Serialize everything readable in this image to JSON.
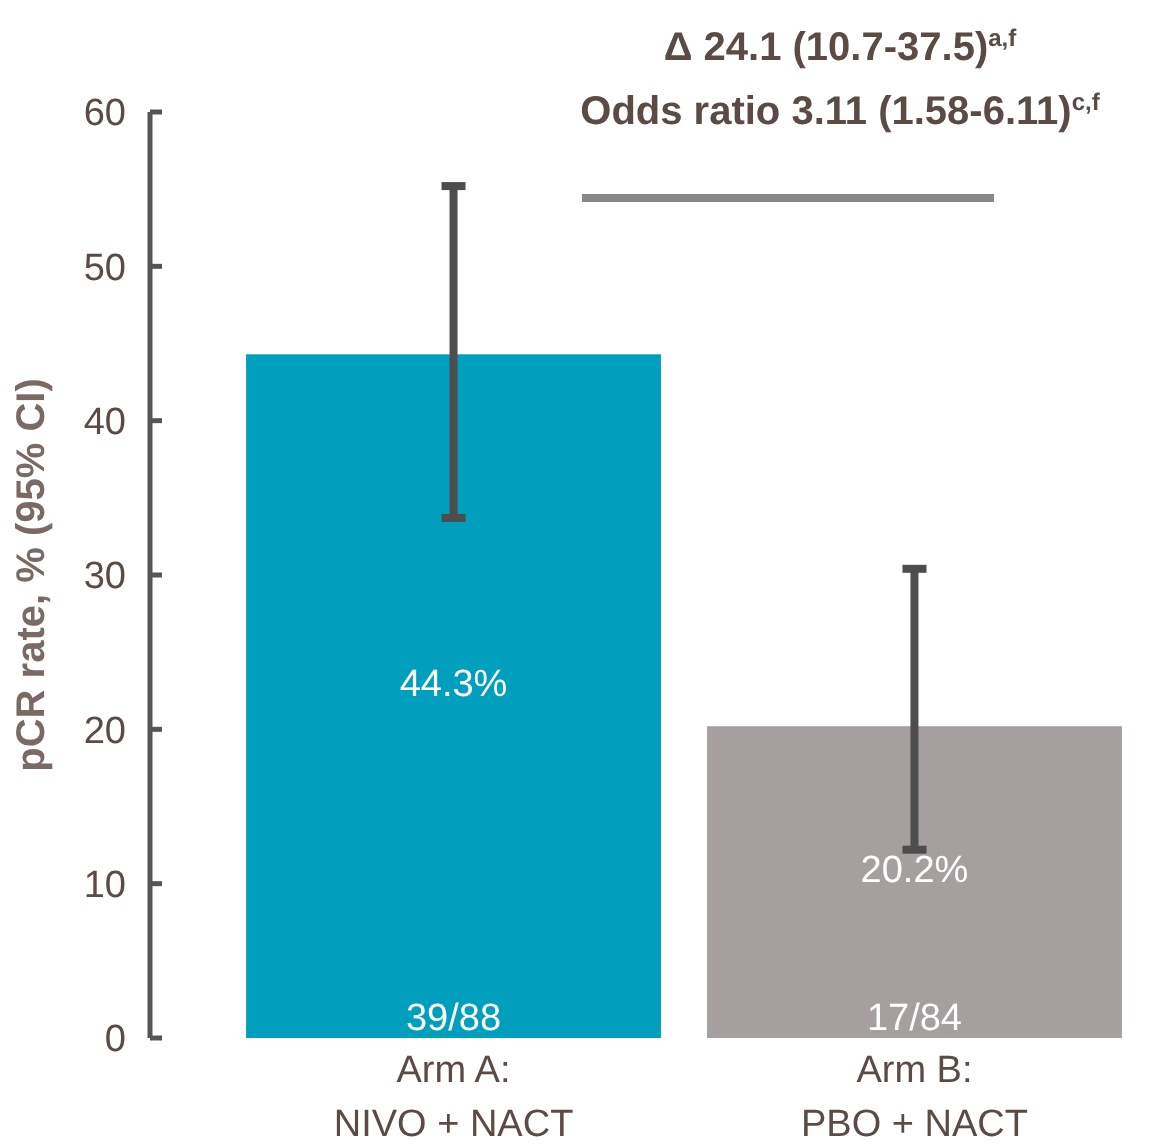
{
  "chart_data": {
    "type": "bar",
    "ylabel": "pCR rate, % (95% CI)",
    "categories": [
      "Arm A:\nNIVO + NACT",
      "Arm B:\nPBO + NACT"
    ],
    "values": [
      44.3,
      20.2
    ],
    "colors": [
      "#009fbd",
      "#a59f9f"
    ],
    "value_labels": [
      "44.3%",
      "20.2%"
    ],
    "errors": [
      [
        33.7,
        55.2
      ],
      [
        12.2,
        30.4
      ]
    ],
    "ylim": [
      0,
      60
    ],
    "yticks": [
      0,
      10,
      20,
      30,
      40,
      50,
      60
    ],
    "grid": false,
    "annotations": [
      "Δ 24.1 (10.7-37.5)$^{a,f}$",
      "Odds ratio 3.11 (1.58-6.11)$^{c,f}$",
      "39/88",
      "17/84"
    ]
  }
}
